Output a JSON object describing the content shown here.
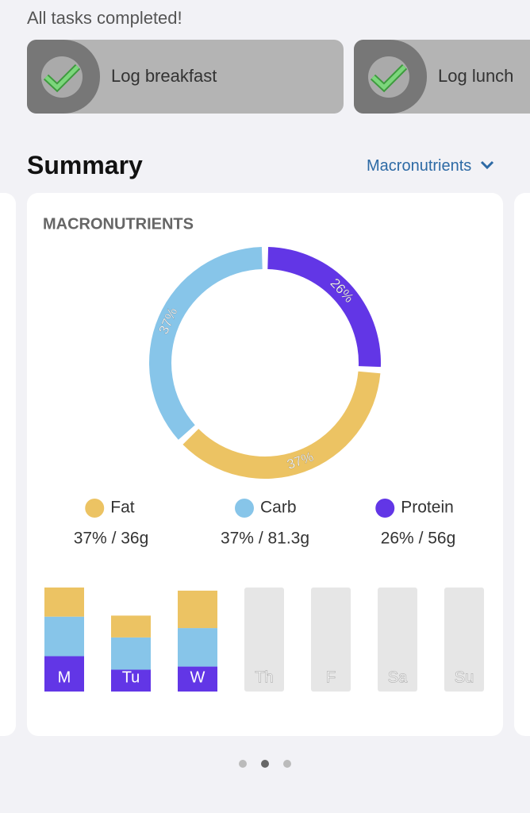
{
  "tasks": {
    "status": "All tasks completed!",
    "items": [
      "Log breakfast",
      "Log lunch"
    ]
  },
  "summary": {
    "title": "Summary",
    "selector": "Macronutrients"
  },
  "chart_data": [
    {
      "type": "pie",
      "title": "MACRONUTRIENTS",
      "categories": [
        "Fat",
        "Carb",
        "Protein"
      ],
      "values": [
        37,
        37,
        26
      ],
      "value_labels": [
        "37%",
        "37%",
        "26%"
      ],
      "colors": [
        "#ecc363",
        "#87c5e9",
        "#6236e6"
      ],
      "legend_details": [
        "37% / 36g",
        "37% / 81.3g",
        "26% / 56g"
      ],
      "start": "Protein"
    },
    {
      "type": "bar",
      "stacked": true,
      "categories": [
        "M",
        "Tu",
        "W",
        "Th",
        "F",
        "Sa",
        "Su"
      ],
      "ylim": [
        0,
        100
      ],
      "series": [
        {
          "name": "Protein",
          "color": "#6236e6",
          "values": [
            34,
            21,
            24,
            null,
            null,
            null,
            null
          ]
        },
        {
          "name": "Carb",
          "color": "#87c5e9",
          "values": [
            38,
            31,
            37,
            null,
            null,
            null,
            null
          ]
        },
        {
          "name": "Fat",
          "color": "#ecc363",
          "values": [
            28,
            21,
            36,
            null,
            null,
            null,
            null
          ]
        }
      ]
    }
  ]
}
